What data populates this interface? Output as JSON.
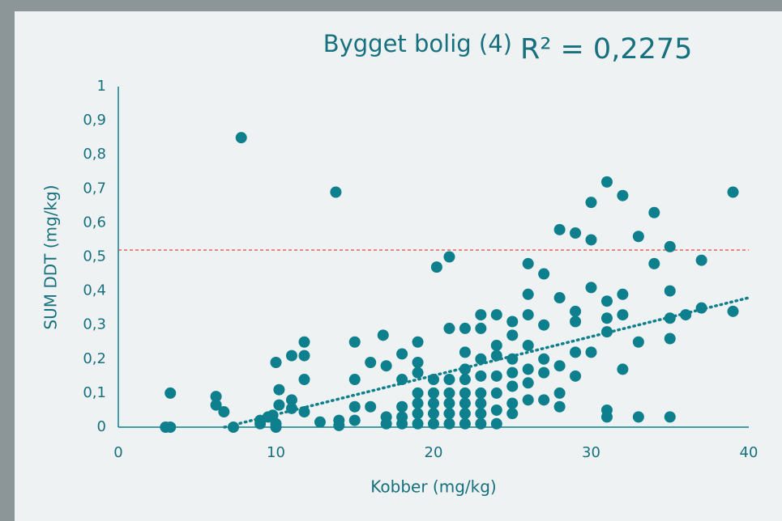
{
  "chart_data": {
    "type": "scatter",
    "title": "Bygget bolig (4)",
    "annotation": "R² = 0,2275",
    "x_label": "Kobber (mg/kg)",
    "y_label": "SUM DDT (mg/kg)",
    "color": "#0e7f8c",
    "xlim": [
      0,
      40
    ],
    "ylim": [
      0,
      1
    ],
    "xticks": [
      0,
      10,
      20,
      30,
      40
    ],
    "yticks": [
      0,
      {
        "value": 0.1,
        "label": "0,1"
      },
      {
        "value": 0.2,
        "label": "0,2"
      },
      {
        "value": 0.3,
        "label": "0,3"
      },
      {
        "value": 0.4,
        "label": "0,4"
      },
      {
        "value": 0.5,
        "label": "0,5"
      },
      {
        "value": 0.6,
        "label": "0,6"
      },
      {
        "value": 0.7,
        "label": "0,7"
      },
      {
        "value": 0.8,
        "label": "0,8"
      },
      {
        "value": 0.9,
        "label": "0,9"
      },
      1
    ],
    "threshold": 0.52,
    "threshold_color": "#e0382e",
    "trendline": {
      "x": [
        6.74,
        40
      ],
      "values": [
        0,
        0.38
      ]
    },
    "x": [
      3,
      3.3,
      3.3,
      6.2,
      6.2,
      6.7,
      7.8,
      7.3,
      9,
      9,
      9.5,
      9.8,
      10,
      10,
      10.2,
      10.2,
      10,
      11,
      11,
      11,
      11.8,
      11.8,
      11.8,
      11.8,
      12.8,
      13.8,
      14,
      14,
      15,
      15,
      15,
      15,
      16,
      16,
      16.8,
      17,
      17,
      17,
      18,
      18,
      18,
      18,
      18,
      19,
      19,
      19,
      19,
      19,
      19,
      19,
      20,
      20,
      20,
      20,
      20,
      20.2,
      21,
      21,
      21,
      21,
      21,
      21,
      21,
      22,
      22,
      22,
      22,
      22,
      22,
      22,
      22,
      23,
      23,
      23,
      23,
      23,
      23,
      23,
      23,
      24,
      24,
      24,
      24,
      24,
      24,
      24,
      25,
      25,
      25,
      25,
      25,
      25,
      25,
      26,
      26,
      26,
      26,
      26,
      26,
      26,
      27,
      27,
      27,
      27,
      27,
      28,
      28,
      28,
      28,
      28,
      29,
      29,
      29,
      29,
      29,
      30,
      30,
      30,
      30,
      31,
      31,
      31,
      31,
      31,
      31,
      32,
      32,
      32,
      32,
      33,
      33,
      33,
      34,
      34,
      35,
      35,
      35,
      35,
      35,
      36,
      37,
      37,
      39,
      39
    ],
    "values": [
      0,
      0,
      0.1,
      0.09,
      0.065,
      0.045,
      0.85,
      0,
      0.01,
      0.02,
      0.03,
      0.035,
      0.19,
      0.01,
      0.065,
      0.11,
      0,
      0.21,
      0.08,
      0.055,
      0.25,
      0.21,
      0.14,
      0.045,
      0.015,
      0.69,
      0.02,
      0.005,
      0.25,
      0.14,
      0.06,
      0.02,
      0.19,
      0.06,
      0.27,
      0.18,
      0.03,
      0.01,
      0.215,
      0.14,
      0.06,
      0.03,
      0.01,
      0.25,
      0.19,
      0.16,
      0.1,
      0.07,
      0.04,
      0.01,
      0.14,
      0.1,
      0.07,
      0.04,
      0.01,
      0.47,
      0.5,
      0.29,
      0.14,
      0.1,
      0.07,
      0.04,
      0.01,
      0.29,
      0.22,
      0.17,
      0.14,
      0.1,
      0.07,
      0.04,
      0.01,
      0.33,
      0.29,
      0.2,
      0.15,
      0.1,
      0.07,
      0.04,
      0.01,
      0.33,
      0.24,
      0.21,
      0.15,
      0.1,
      0.05,
      0.01,
      0.31,
      0.27,
      0.2,
      0.16,
      0.12,
      0.07,
      0.04,
      0.48,
      0.39,
      0.33,
      0.24,
      0.17,
      0.13,
      0.08,
      0.45,
      0.3,
      0.2,
      0.16,
      0.08,
      0.58,
      0.38,
      0.18,
      0.1,
      0.06,
      0.57,
      0.34,
      0.31,
      0.22,
      0.15,
      0.66,
      0.55,
      0.41,
      0.22,
      0.72,
      0.37,
      0.32,
      0.28,
      0.05,
      0.03,
      0.68,
      0.39,
      0.33,
      0.17,
      0.56,
      0.25,
      0.03,
      0.63,
      0.48,
      0.53,
      0.4,
      0.32,
      0.26,
      0.03,
      0.33,
      0.49,
      0.35,
      0.69,
      0.34
    ]
  }
}
